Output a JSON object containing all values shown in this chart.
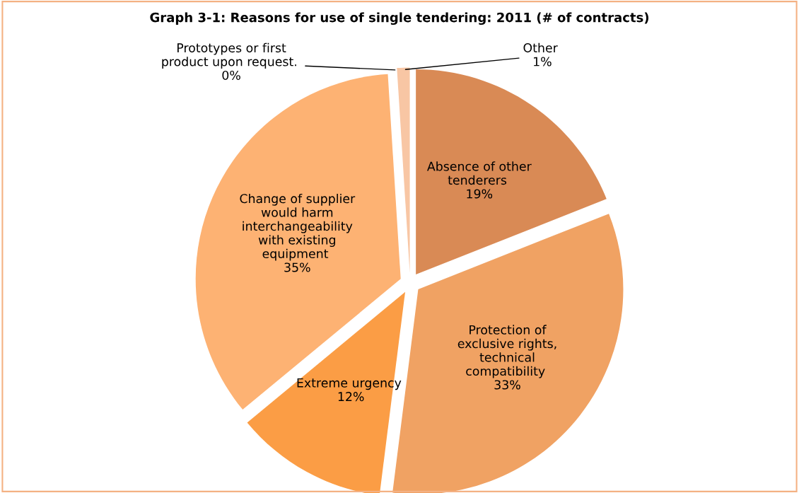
{
  "chart_data": {
    "type": "pie",
    "title": "Graph 3-1: Reasons for use of single tendering: 2011 (# of contracts)",
    "categories": [
      "Absence of other tenderers",
      "Protection of exclusive rights, technical compatibility",
      "Extreme urgency",
      "Change of supplier would harm interchangeability with existing equipment",
      "Prototypes or first product upon request.",
      "Other"
    ],
    "values": [
      19,
      33,
      12,
      35,
      0,
      1
    ],
    "value_labels": [
      "19%",
      "33%",
      "12%",
      "35%",
      "0%",
      "1%"
    ],
    "colors": [
      "#d98a55",
      "#f0a263",
      "#fb9d45",
      "#fdb273",
      "#fcd3b4",
      "#f8c6a4"
    ],
    "legend": false
  }
}
